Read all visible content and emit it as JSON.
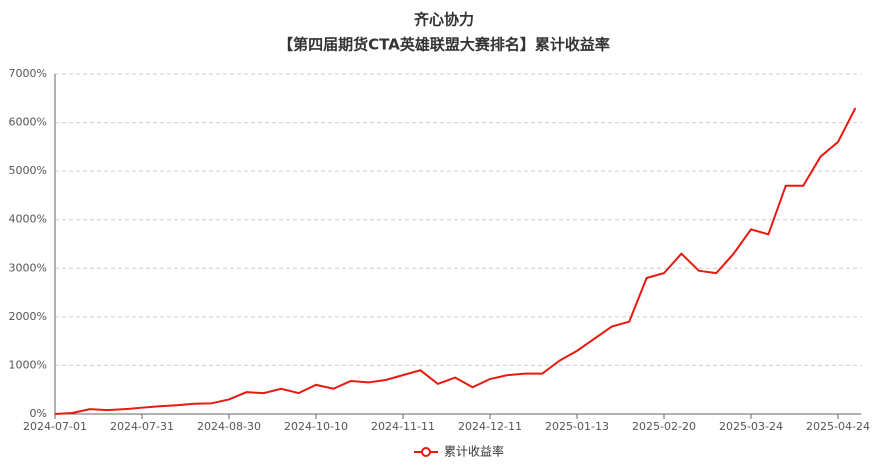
{
  "chart_data": {
    "type": "line",
    "title": "齐心协力",
    "subtitle": "【第四届期货CTA英雄联盟大赛排名】累计收益率",
    "categories": [
      "2024-07-01",
      null,
      null,
      null,
      null,
      "2024-07-31",
      null,
      null,
      null,
      null,
      "2024-08-30",
      null,
      null,
      null,
      null,
      "2024-10-10",
      null,
      null,
      null,
      null,
      "2024-11-11",
      null,
      null,
      null,
      null,
      "2024-12-11",
      null,
      null,
      null,
      null,
      "2025-01-13",
      null,
      null,
      null,
      null,
      "2025-02-20",
      null,
      null,
      null,
      null,
      "2025-03-24",
      null,
      null,
      null,
      null,
      "2025-04-24",
      null
    ],
    "series": [
      {
        "name": "累计收益率",
        "color": "#e8190f",
        "values": [
          0,
          20,
          100,
          80,
          100,
          130,
          160,
          180,
          210,
          220,
          300,
          450,
          430,
          520,
          430,
          600,
          520,
          680,
          650,
          700,
          800,
          900,
          620,
          750,
          550,
          720,
          800,
          830,
          830,
          1100,
          1300,
          1550,
          1800,
          1900,
          2800,
          2900,
          3300,
          2950,
          2900,
          3300,
          3800,
          3700,
          4700,
          4700,
          5300,
          5600,
          6300
        ]
      }
    ],
    "ylim": [
      0,
      7000
    ],
    "yticks": [
      {
        "value": 0,
        "label": "0%"
      },
      {
        "value": 1000,
        "label": "1000%"
      },
      {
        "value": 2000,
        "label": "2000%"
      },
      {
        "value": 3000,
        "label": "3000%"
      },
      {
        "value": 4000,
        "label": "4000%"
      },
      {
        "value": 5000,
        "label": "5000%"
      },
      {
        "value": 6000,
        "label": "6000%"
      },
      {
        "value": 7000,
        "label": "7000%"
      }
    ],
    "grid": true
  }
}
